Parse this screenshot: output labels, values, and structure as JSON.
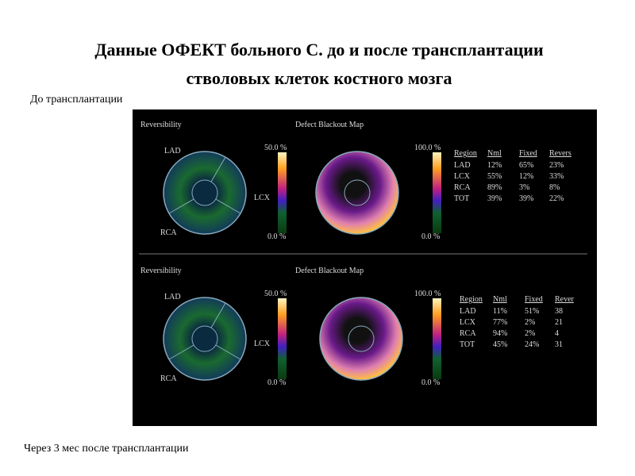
{
  "title": [
    "Данные ОФЕКТ больного С. до и после трансплантации",
    "стволовых клеток костного мозга"
  ],
  "labels": {
    "before": "До трансплантации",
    "after": "Через 3 мес после трансплантации"
  },
  "panels": [
    {
      "reversibility_title": "Reversibility",
      "blackout_title": "Defect Blackout Map",
      "regions": [
        "LAD",
        "LCX",
        "RCA"
      ],
      "scale1": [
        "50.0 %",
        "0.0 %"
      ],
      "scale2": [
        "100.0 %",
        "0.0 %"
      ],
      "table": {
        "header": [
          "Region",
          "Nml",
          "Fixed",
          "Revers"
        ],
        "rows": [
          [
            "LAD",
            "12%",
            "65%",
            "23%"
          ],
          [
            "LCX",
            "55%",
            "12%",
            "33%"
          ],
          [
            "RCA",
            "89%",
            "3%",
            "8%"
          ],
          [
            "TOT",
            "39%",
            "39%",
            "22%"
          ]
        ]
      }
    },
    {
      "reversibility_title": "Reversibility",
      "blackout_title": "Defect Blackout Map",
      "regions": [
        "LAD",
        "LCX",
        "RCA"
      ],
      "scale1": [
        "50.0 %",
        "0.0 %"
      ],
      "scale2": [
        "100.0 %",
        "0.0 %"
      ],
      "table": {
        "header": [
          "Region",
          "Nml",
          "Fixed",
          "Rever"
        ],
        "rows": [
          [
            "LAD",
            "11%",
            "51%",
            "38"
          ],
          [
            "LCX",
            "77%",
            "2%",
            "21"
          ],
          [
            "RCA",
            "94%",
            "2%",
            "4"
          ],
          [
            "TOT",
            "45%",
            "24%",
            "31"
          ]
        ]
      }
    }
  ]
}
